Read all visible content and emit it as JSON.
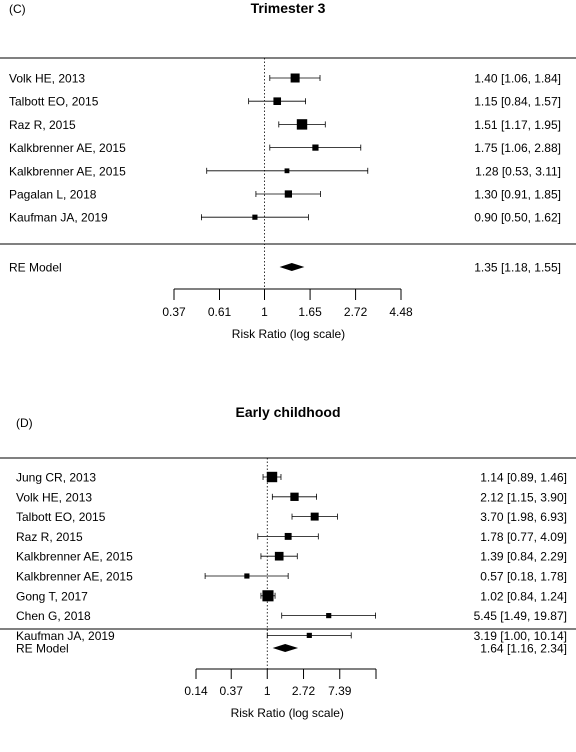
{
  "chart_data": [
    {
      "type": "forest",
      "panel_label": "(C)",
      "title": "Trimester 3",
      "xlabel": "Risk Ratio (log scale)",
      "x_scale": "log",
      "reference_value": 1,
      "xticks": [
        0.37,
        0.61,
        1,
        1.65,
        2.72,
        4.48
      ],
      "xtick_labels": [
        "0.37",
        "0.61",
        "1",
        "1.65",
        "2.72",
        "4.48"
      ],
      "studies": [
        {
          "label": "Volk HE, 2013",
          "rr": 1.4,
          "lower": 1.06,
          "upper": 1.84,
          "text": "1.40 [1.06, 1.84]",
          "marker_weight": 1.0
        },
        {
          "label": "Talbott EO, 2015",
          "rr": 1.15,
          "lower": 0.84,
          "upper": 1.57,
          "text": "1.15 [0.84, 1.57]",
          "marker_weight": 0.8
        },
        {
          "label": "Raz R, 2015",
          "rr": 1.51,
          "lower": 1.17,
          "upper": 1.95,
          "text": "1.51 [1.17, 1.95]",
          "marker_weight": 1.2
        },
        {
          "label": "Kalkbrenner AE, 2015",
          "rr": 1.75,
          "lower": 1.06,
          "upper": 2.88,
          "text": "1.75 [1.06, 2.88]",
          "marker_weight": 0.6
        },
        {
          "label": "Kalkbrenner AE, 2015",
          "rr": 1.28,
          "lower": 0.53,
          "upper": 3.11,
          "text": "1.28 [0.53, 3.11]",
          "marker_weight": 0.4
        },
        {
          "label": "Pagalan L, 2018",
          "rr": 1.3,
          "lower": 0.91,
          "upper": 1.85,
          "text": "1.30 [0.91, 1.85]",
          "marker_weight": 0.75
        },
        {
          "label": "Kaufman JA, 2019",
          "rr": 0.9,
          "lower": 0.5,
          "upper": 1.62,
          "text": "0.90 [0.50, 1.62]",
          "marker_weight": 0.45
        }
      ],
      "summary": {
        "label": "RE Model",
        "rr": 1.35,
        "lower": 1.18,
        "upper": 1.55,
        "text": "1.35 [1.18, 1.55]"
      }
    },
    {
      "type": "forest",
      "panel_label": "(D)",
      "title": "Early childhood",
      "xlabel": "Risk Ratio (log scale)",
      "x_scale": "log",
      "reference_value": 1,
      "xticks": [
        0.14,
        0.37,
        1,
        2.72,
        7.39,
        20.09
      ],
      "xtick_labels": [
        "0.14",
        "0.37",
        "1",
        "2.72",
        "7.39",
        ""
      ],
      "studies": [
        {
          "label": "Jung CR, 2013",
          "rr": 1.14,
          "lower": 0.89,
          "upper": 1.46,
          "text": "1.14 [0.89,  1.46]",
          "marker_weight": 1.2
        },
        {
          "label": "Volk HE, 2013",
          "rr": 2.12,
          "lower": 1.15,
          "upper": 3.9,
          "text": "2.12 [1.15,  3.90]",
          "marker_weight": 0.9
        },
        {
          "label": "Talbott EO, 2015",
          "rr": 3.7,
          "lower": 1.98,
          "upper": 6.93,
          "text": "3.70 [1.98,  6.93]",
          "marker_weight": 0.85
        },
        {
          "label": "Raz R, 2015",
          "rr": 1.78,
          "lower": 0.77,
          "upper": 4.09,
          "text": "1.78 [0.77,  4.09]",
          "marker_weight": 0.7
        },
        {
          "label": "Kalkbrenner AE, 2015",
          "rr": 1.39,
          "lower": 0.84,
          "upper": 2.29,
          "text": "1.39 [0.84,  2.29]",
          "marker_weight": 0.95
        },
        {
          "label": "Kalkbrenner AE, 2015",
          "rr": 0.57,
          "lower": 0.18,
          "upper": 1.78,
          "text": "0.57 [0.18,  1.78]",
          "marker_weight": 0.45
        },
        {
          "label": "Gong T, 2017",
          "rr": 1.02,
          "lower": 0.84,
          "upper": 1.24,
          "text": "1.02 [0.84,  1.24]",
          "marker_weight": 1.3
        },
        {
          "label": "Chen G, 2018",
          "rr": 5.45,
          "lower": 1.49,
          "upper": 19.87,
          "text": "5.45 [1.49, 19.87]",
          "marker_weight": 0.45
        },
        {
          "label": "Kaufman JA, 2019",
          "rr": 3.19,
          "lower": 1.0,
          "upper": 10.14,
          "text": "3.19 [1.00, 10.14]",
          "marker_weight": 0.45
        }
      ],
      "summary": {
        "label": "RE Model",
        "rr": 1.64,
        "lower": 1.16,
        "upper": 2.34,
        "text": "1.64 [1.16,  2.34]"
      }
    }
  ]
}
